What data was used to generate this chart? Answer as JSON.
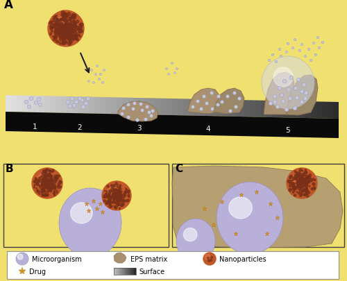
{
  "bg_color": "#f0e070",
  "micro_color": "#b8b0d8",
  "micro_edge": "#9890b8",
  "micro_highlight": "#ffffff",
  "nano_base": "#c05828",
  "nano_bright": "#d87040",
  "nano_dot_dark": "#7a3018",
  "eps_color": "#a89070",
  "eps_edge": "#887050",
  "ndot_color": "#c8c8dc",
  "ndot_edge": "#9898b8",
  "drug_color": "#d89820",
  "surface_light": "#c8c8c8",
  "surface_dark": "#101010",
  "arrow_color": "#202020",
  "legend_bg": "#ffffff",
  "legend_edge": "#909090",
  "panel_edge": "#404040",
  "stage_labels": [
    "1",
    "2",
    "3",
    "4",
    "5"
  ],
  "panel_labels": [
    "A",
    "B",
    "C"
  ]
}
